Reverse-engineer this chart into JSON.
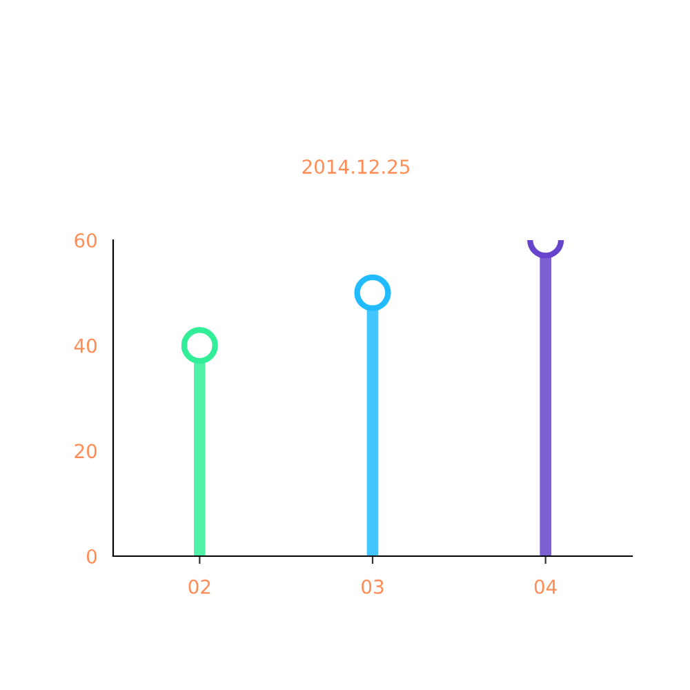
{
  "chart_data": {
    "type": "lollipop",
    "title": "2014.12.25",
    "categories": [
      "02",
      "03",
      "04"
    ],
    "values": [
      40,
      50,
      60
    ],
    "colors": [
      "#33ee99",
      "#22bbff",
      "#6644cc"
    ],
    "ylim": [
      0,
      60
    ],
    "yticks": [
      0,
      20,
      40,
      60
    ],
    "marker": "circle",
    "grid": false,
    "legend": false
  }
}
